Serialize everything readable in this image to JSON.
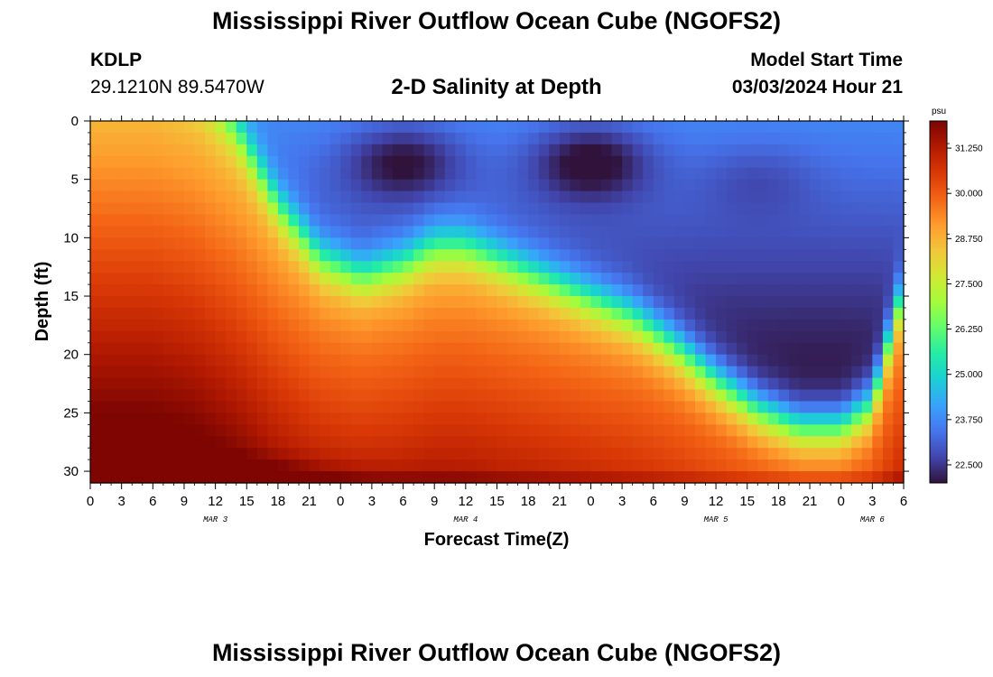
{
  "titles": {
    "top": "Mississippi River Outflow Ocean Cube (NGOFS2)",
    "bottom": "Mississippi River Outflow Ocean Cube (NGOFS2)"
  },
  "station": {
    "id": "KDLP",
    "coords": "29.1210N  89.5470W"
  },
  "model_start": {
    "label": "Model Start Time",
    "value": "03/03/2024 Hour 21"
  },
  "chart_data": {
    "type": "heatmap",
    "title": "Mississippi River Outflow Ocean Cube (NGOFS2)",
    "subtitle": "2-D Salinity at Depth",
    "xlabel": "Forecast Time(Z)",
    "ylabel": "Depth (ft)",
    "x_unit": "hours from Mar 3 00Z",
    "xlim": [
      0,
      78
    ],
    "ylim": [
      0,
      31
    ],
    "y_inverted": true,
    "x_ticks": [
      "0",
      "3",
      "6",
      "9",
      "12",
      "15",
      "18",
      "21",
      "0",
      "3",
      "6",
      "9",
      "12",
      "15",
      "18",
      "21",
      "0",
      "3",
      "6",
      "9",
      "12",
      "15",
      "18",
      "21",
      "0",
      "3",
      "6"
    ],
    "y_ticks": [
      0,
      5,
      10,
      15,
      20,
      25,
      30
    ],
    "date_labels": [
      {
        "label": "MAR 3",
        "hour": 12
      },
      {
        "label": "MAR 4",
        "hour": 36
      },
      {
        "label": "MAR 5",
        "hour": 60
      },
      {
        "label": "MAR 6",
        "hour": 75
      }
    ],
    "colorbar": {
      "unit": "psu",
      "min": 22.0,
      "max": 32.0,
      "ticks": [
        "31.250",
        "30.000",
        "28.750",
        "27.500",
        "26.250",
        "25.000",
        "23.750",
        "22.500"
      ],
      "colors": [
        "#30123b",
        "#4145ab",
        "#4675ed",
        "#39a2fc",
        "#1bcfd4",
        "#24eca6",
        "#61fc6c",
        "#a4fc3b",
        "#d1e834",
        "#f3c63a",
        "#fe9b2d",
        "#f36315",
        "#d93806",
        "#b11901",
        "#7a0402"
      ]
    },
    "grid": false,
    "halocline_depth_ft": {
      "hours": [
        0,
        6,
        10,
        14,
        18,
        22,
        26,
        30,
        33,
        36,
        40,
        44,
        48,
        52,
        56,
        60,
        64,
        68,
        72,
        75,
        76.5,
        78
      ],
      "depth": [
        -6,
        -6,
        -4,
        0.5,
        7,
        11.5,
        13,
        12,
        10.5,
        10.5,
        12,
        13.5,
        15,
        16.5,
        19,
        22,
        24.5,
        26,
        26,
        24,
        19,
        14
      ]
    },
    "surface_low_centers": [
      {
        "hour": 30,
        "depth": 3.5,
        "salinity": 22.2
      },
      {
        "hour": 48,
        "depth": 3.5,
        "salinity": 22.0
      },
      {
        "hour": 64,
        "depth": 5,
        "salinity": 23.2
      }
    ],
    "deep_max": {
      "hour": 12,
      "depth": 30.5,
      "salinity": 31.8
    }
  }
}
